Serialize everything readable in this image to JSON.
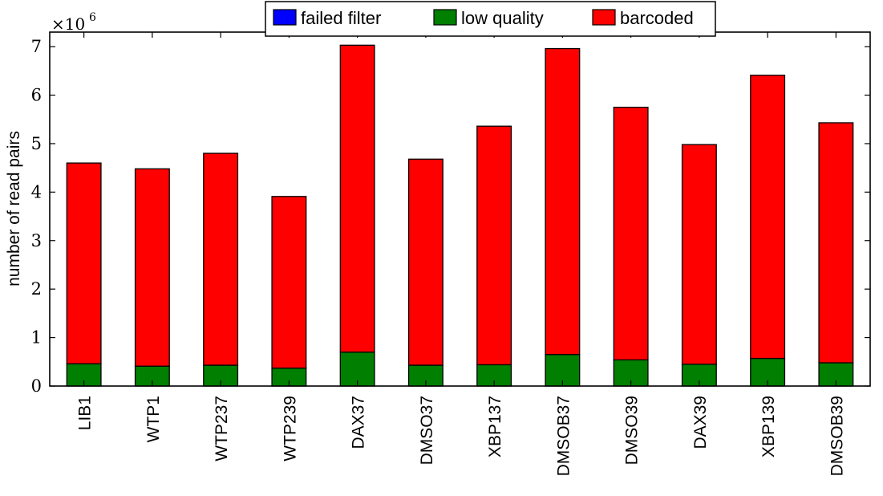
{
  "chart_data": {
    "type": "bar",
    "stacked": true,
    "categories": [
      "LIB1",
      "WTP1",
      "WTP237",
      "WTP239",
      "DAX37",
      "DMSO37",
      "XBP137",
      "DMSOB37",
      "DMSO39",
      "DAX39",
      "XBP139",
      "DMSOB39"
    ],
    "series": [
      {
        "name": "failed filter",
        "color": "#0000ff",
        "values": [
          0,
          0,
          0,
          0,
          0,
          0,
          0,
          0,
          0,
          0,
          0,
          0
        ]
      },
      {
        "name": "low quality",
        "color": "#007f00",
        "values": [
          0.46,
          0.41,
          0.43,
          0.37,
          0.7,
          0.43,
          0.44,
          0.65,
          0.54,
          0.45,
          0.57,
          0.48
        ]
      },
      {
        "name": "barcoded",
        "color": "#ff0000",
        "values": [
          4.14,
          4.07,
          4.37,
          3.54,
          6.33,
          4.25,
          4.92,
          6.31,
          5.21,
          4.53,
          5.84,
          4.95
        ]
      }
    ],
    "ylabel": "number of read pairs",
    "y_scale_base": "×10",
    "y_scale_exponent": "6",
    "ylim": [
      0,
      7.3
    ],
    "yticks": [
      "0",
      "1",
      "2",
      "3",
      "4",
      "5",
      "6",
      "7"
    ],
    "legend_position": "top-center",
    "grid": false
  }
}
